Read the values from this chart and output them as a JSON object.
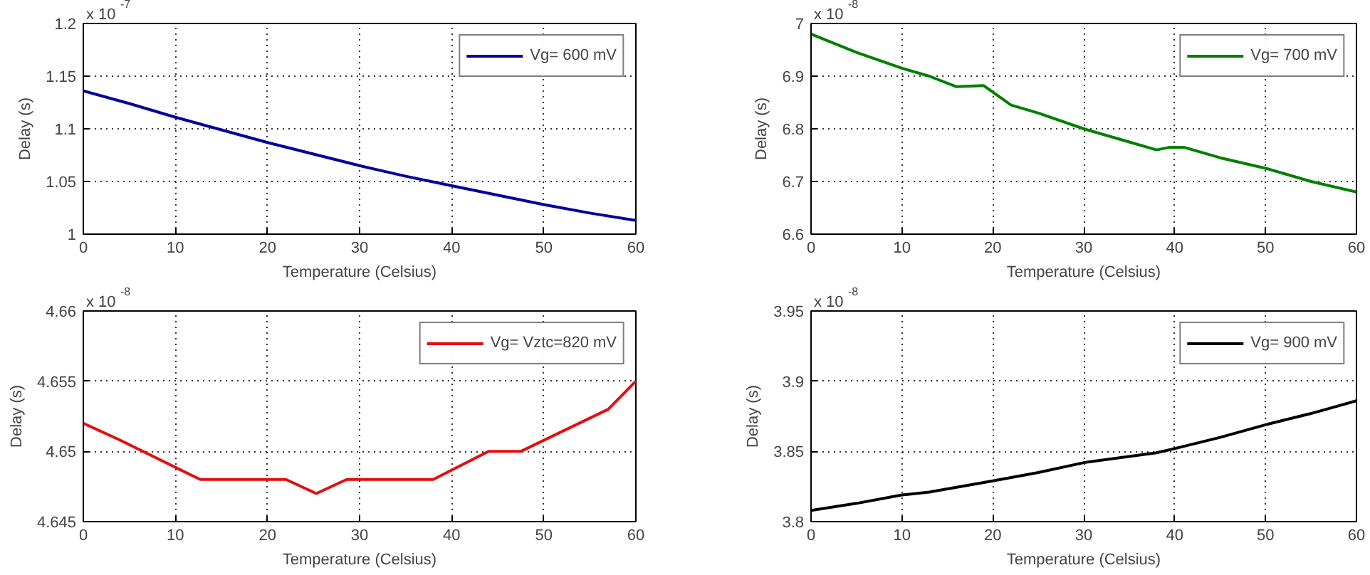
{
  "chart_data": [
    {
      "type": "line",
      "xlabel": "Temperature (Celsius)",
      "ylabel": "Delay (s)",
      "annotations": [
        "x 10$^{-7}$"
      ],
      "xlim": [
        0,
        60
      ],
      "ylim": [
        1,
        1.2
      ],
      "xticks": [
        0,
        10,
        20,
        30,
        40,
        50,
        60
      ],
      "yticks": [
        1,
        1.05,
        1.1,
        1.15,
        1.2
      ],
      "grid": true,
      "legend": "top right",
      "x": [
        0,
        5,
        10,
        15,
        20,
        25,
        30,
        35,
        40,
        45,
        50,
        55,
        60
      ],
      "series": [
        {
          "name": "Vg= 600 mV",
          "color": "#0000a0",
          "values": [
            1.136,
            1.124,
            1.111,
            1.099,
            1.087,
            1.076,
            1.065,
            1.055,
            1.046,
            1.037,
            1.028,
            1.02,
            1.013
          ]
        }
      ]
    },
    {
      "type": "line",
      "xlabel": "Temperature (Celsius)",
      "ylabel": "Delay (s)",
      "annotations": [
        "x 10$^{-8}$"
      ],
      "xlim": [
        0,
        60
      ],
      "ylim": [
        6.6,
        7
      ],
      "xticks": [
        0,
        10,
        20,
        30,
        40,
        50,
        60
      ],
      "yticks": [
        6.6,
        6.7,
        6.8,
        6.9,
        7
      ],
      "grid": true,
      "legend": "top right",
      "x": [
        0,
        5,
        10,
        13,
        16,
        19,
        22,
        25,
        30,
        35,
        38,
        39.5,
        41,
        45,
        50,
        55,
        60
      ],
      "series": [
        {
          "name": "Vg= 700 mV",
          "color": "#008000",
          "values": [
            6.98,
            6.945,
            6.915,
            6.9,
            6.88,
            6.882,
            6.845,
            6.83,
            6.8,
            6.775,
            6.76,
            6.765,
            6.765,
            6.745,
            6.725,
            6.7,
            6.68
          ]
        }
      ]
    },
    {
      "type": "line",
      "xlabel": "Temperature (Celsius)",
      "ylabel": "Delay (s)",
      "annotations": [
        "x 10$^{-8}$"
      ],
      "xlim": [
        0,
        60
      ],
      "ylim": [
        4.645,
        4.66
      ],
      "xticks": [
        0,
        10,
        20,
        30,
        40,
        50,
        60
      ],
      "yticks": [
        4.645,
        4.65,
        4.655,
        4.66
      ],
      "grid": true,
      "legend": "top right",
      "x": [
        0,
        4,
        12.7,
        22,
        25.3,
        28.6,
        38,
        44,
        47.5,
        57,
        60
      ],
      "series": [
        {
          "name": "Vg= Vztc=820 mV",
          "color": "#e01010",
          "values": [
            4.652,
            4.6508,
            4.648,
            4.648,
            4.647,
            4.648,
            4.648,
            4.65,
            4.65,
            4.653,
            4.655
          ]
        }
      ]
    },
    {
      "type": "line",
      "xlabel": "Temperature (Celsius)",
      "ylabel": "Delay (s)",
      "annotations": [
        "x 10$^{-8}$"
      ],
      "xlim": [
        0,
        60
      ],
      "ylim": [
        3.8,
        3.95
      ],
      "xticks": [
        0,
        10,
        20,
        30,
        40,
        50,
        60
      ],
      "yticks": [
        3.8,
        3.85,
        3.9,
        3.95
      ],
      "grid": true,
      "legend": "top right",
      "x": [
        0,
        5,
        10,
        13,
        20,
        25,
        30,
        38,
        40,
        45,
        50,
        55,
        60
      ],
      "series": [
        {
          "name": "Vg= 900 mV",
          "color": "#000000",
          "values": [
            3.808,
            3.813,
            3.819,
            3.821,
            3.829,
            3.835,
            3.842,
            3.849,
            3.852,
            3.86,
            3.869,
            3.877,
            3.886
          ]
        }
      ]
    }
  ]
}
